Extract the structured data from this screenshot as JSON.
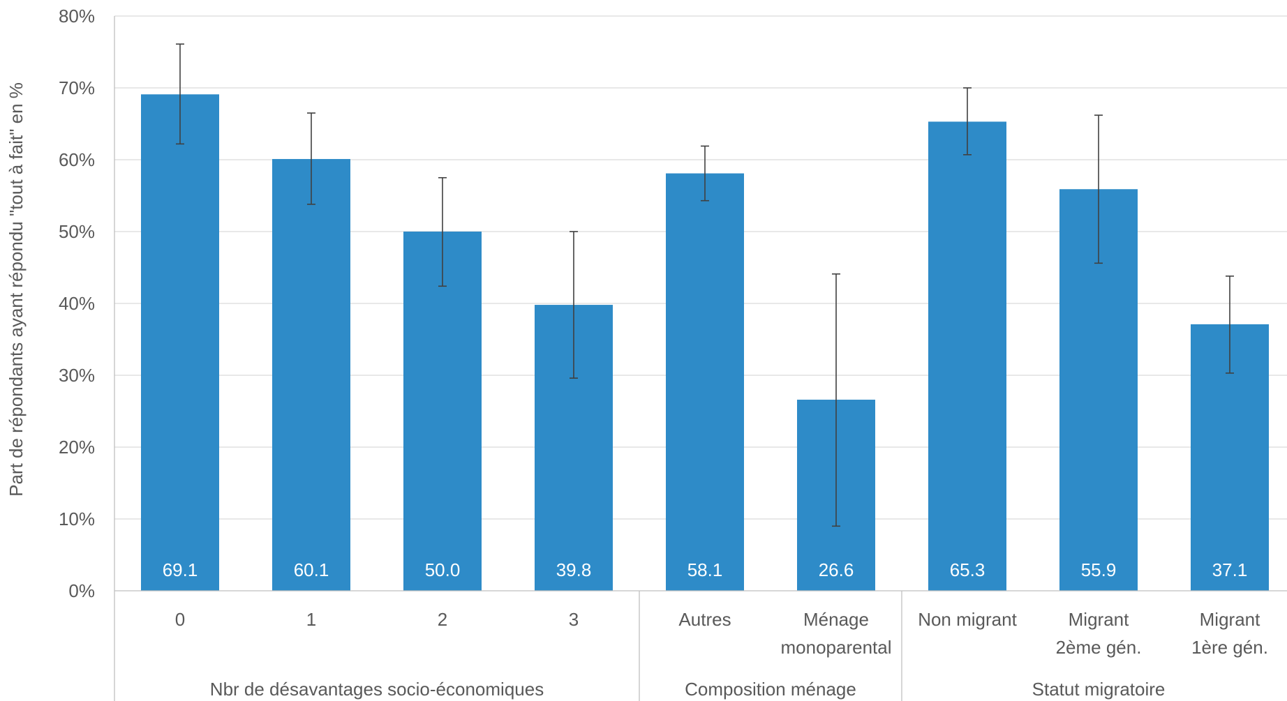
{
  "chart_data": {
    "type": "bar",
    "ylabel": "Part de répondants  ayant répondu \"tout à fait\" en %",
    "ylim": [
      0,
      80
    ],
    "yticks": [
      "0%",
      "10%",
      "20%",
      "30%",
      "40%",
      "50%",
      "60%",
      "70%",
      "80%"
    ],
    "grid": true,
    "categories": [
      [
        "0"
      ],
      [
        "1"
      ],
      [
        "2"
      ],
      [
        "3"
      ],
      [
        "Autres"
      ],
      [
        "Ménage",
        "monoparental"
      ],
      [
        "Non migrant"
      ],
      [
        "Migrant",
        "2ème gén."
      ],
      [
        "Migrant",
        "1ère gén."
      ]
    ],
    "values": [
      69.1,
      60.1,
      50.0,
      39.8,
      58.1,
      26.6,
      65.3,
      55.9,
      37.1
    ],
    "value_labels": [
      "69.1",
      "60.1",
      "50.0",
      "39.8",
      "58.1",
      "26.6",
      "65.3",
      "55.9",
      "37.1"
    ],
    "error_low": [
      62.2,
      53.8,
      42.4,
      29.6,
      54.3,
      9.0,
      60.7,
      45.6,
      30.3
    ],
    "error_high": [
      76.1,
      66.5,
      57.5,
      50.0,
      61.9,
      44.1,
      70.0,
      66.2,
      43.8
    ],
    "groups": [
      {
        "label": "Nbr de désavantages socio-économiques",
        "start": 0,
        "end": 3
      },
      {
        "label": "Composition ménage",
        "start": 4,
        "end": 5
      },
      {
        "label": "Statut migratoire",
        "start": 6,
        "end": 8
      }
    ],
    "colors": {
      "bar": "#2e8bc8",
      "gridline": "#d9d9d9",
      "axis": "#bfbfbf",
      "error_bar": "#404040",
      "text": "#595959",
      "data_label": "#ffffff"
    }
  }
}
